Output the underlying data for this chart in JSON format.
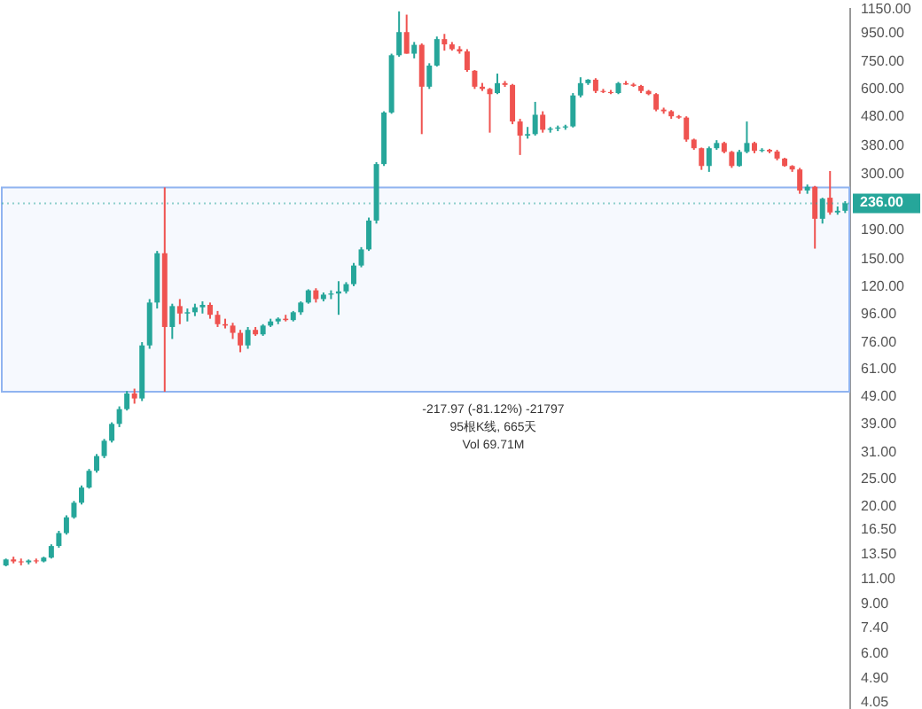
{
  "chart_data": {
    "type": "candlestick",
    "categories": [
      null,
      null,
      null,
      null,
      null,
      null,
      null,
      null,
      null,
      null,
      null,
      null,
      null,
      null,
      null,
      null,
      null,
      null,
      null,
      null,
      null,
      null,
      null,
      null,
      null,
      null,
      null,
      null,
      null,
      null,
      null,
      null,
      null,
      null,
      null,
      null,
      null,
      null,
      null,
      null,
      null,
      null,
      null,
      null,
      null,
      null,
      null,
      null,
      null,
      null,
      null,
      null,
      null,
      null,
      null,
      null,
      null,
      null,
      null,
      null,
      null,
      null,
      null,
      null,
      null,
      null,
      null,
      null,
      null,
      null,
      null,
      null,
      null,
      null,
      null,
      null,
      null,
      null,
      null,
      null,
      null,
      null,
      null,
      null,
      null,
      null,
      null,
      null,
      null,
      null,
      null,
      null,
      null,
      null,
      null,
      null,
      null,
      null,
      null,
      null,
      null,
      null,
      null,
      null,
      null,
      null,
      null,
      null,
      null,
      null,
      null,
      null
    ],
    "ohlc": [
      [
        12.3,
        13,
        12.2,
        12.9
      ],
      [
        12.9,
        13.2,
        12.5,
        12.7
      ],
      [
        12.7,
        13.0,
        12.3,
        12.6
      ],
      [
        12.6,
        12.9,
        12.4,
        12.8
      ],
      [
        12.8,
        13.0,
        12.5,
        12.7
      ],
      [
        12.7,
        13.2,
        12.6,
        13.1
      ],
      [
        13.1,
        14.6,
        13.0,
        14.4
      ],
      [
        14.4,
        16.3,
        14.2,
        16.0
      ],
      [
        16.0,
        18.5,
        15.8,
        18.2
      ],
      [
        18.2,
        20.8,
        18.0,
        20.5
      ],
      [
        20.5,
        23.6,
        20.2,
        23.2
      ],
      [
        23.2,
        27,
        23,
        26.6
      ],
      [
        26.6,
        30.5,
        26.2,
        30
      ],
      [
        30,
        34.5,
        29.5,
        34
      ],
      [
        34,
        39.5,
        33.5,
        39
      ],
      [
        39,
        45,
        38,
        44
      ],
      [
        44,
        51,
        43.5,
        50
      ],
      [
        50,
        52,
        46,
        48
      ],
      [
        48,
        76,
        47,
        74
      ],
      [
        74,
        108,
        72,
        105
      ],
      [
        105,
        160,
        100,
        157
      ],
      [
        157,
        268.7,
        50.7,
        86
      ],
      [
        86,
        104,
        78,
        102
      ],
      [
        102,
        108,
        88,
        96
      ],
      [
        96,
        100,
        90,
        97
      ],
      [
        97,
        104,
        94,
        101
      ],
      [
        101,
        106,
        96,
        103
      ],
      [
        103,
        105,
        92,
        95
      ],
      [
        95,
        98,
        86,
        88
      ],
      [
        88,
        92,
        85,
        87
      ],
      [
        87,
        89,
        78,
        82
      ],
      [
        82,
        84,
        70,
        74
      ],
      [
        74,
        86,
        72,
        84
      ],
      [
        84,
        86,
        80,
        81
      ],
      [
        81,
        88,
        80,
        87
      ],
      [
        87,
        92,
        86,
        90
      ],
      [
        90,
        93,
        88,
        92
      ],
      [
        92,
        95,
        90,
        91
      ],
      [
        91,
        98,
        90,
        97
      ],
      [
        97,
        106,
        95,
        105
      ],
      [
        105,
        117,
        104,
        116
      ],
      [
        116,
        118,
        105,
        108
      ],
      [
        108,
        114,
        106,
        112
      ],
      [
        112,
        116,
        108,
        113
      ],
      [
        113,
        125,
        95,
        115
      ],
      [
        115,
        124,
        113,
        122
      ],
      [
        122,
        145,
        120,
        142
      ],
      [
        142,
        165,
        140,
        162
      ],
      [
        162,
        210,
        160,
        205
      ],
      [
        205,
        330,
        200,
        325
      ],
      [
        325,
        500,
        320,
        495
      ],
      [
        495,
        800,
        490,
        790
      ],
      [
        790,
        1130,
        780,
        954
      ],
      [
        954,
        1100,
        800,
        800
      ],
      [
        800,
        880,
        770,
        860
      ],
      [
        860,
        870,
        415,
        611
      ],
      [
        611,
        740,
        600,
        726
      ],
      [
        726,
        920,
        720,
        901
      ],
      [
        901,
        940,
        820,
        863
      ],
      [
        863,
        880,
        820,
        830
      ],
      [
        830,
        850,
        800,
        815
      ],
      [
        815,
        830,
        690,
        700
      ],
      [
        696,
        700,
        600,
        611
      ],
      [
        611,
        630,
        590,
        600
      ],
      [
        600,
        605,
        420,
        575
      ],
      [
        580,
        680,
        575,
        629
      ],
      [
        629,
        640,
        610,
        620
      ],
      [
        620,
        625,
        450,
        460
      ],
      [
        460,
        470,
        350,
        410
      ],
      [
        410,
        440,
        400,
        415
      ],
      [
        415,
        540,
        410,
        486
      ],
      [
        486,
        500,
        420,
        430
      ],
      [
        430,
        440,
        420,
        434
      ],
      [
        434,
        445,
        425,
        438
      ],
      [
        438,
        448,
        430,
        442
      ],
      [
        442,
        580,
        438,
        569
      ],
      [
        569,
        660,
        560,
        629
      ],
      [
        629,
        650,
        620,
        647
      ],
      [
        647,
        655,
        580,
        590
      ],
      [
        590,
        600,
        580,
        585
      ],
      [
        585,
        595,
        575,
        580
      ],
      [
        580,
        635,
        575,
        629
      ],
      [
        629,
        640,
        620,
        622
      ],
      [
        622,
        630,
        610,
        615
      ],
      [
        615,
        620,
        580,
        590
      ],
      [
        590,
        595,
        570,
        575
      ],
      [
        575,
        580,
        500,
        507
      ],
      [
        507,
        515,
        490,
        500
      ],
      [
        500,
        505,
        470,
        480
      ],
      [
        480,
        485,
        470,
        475
      ],
      [
        475,
        480,
        390,
        397
      ],
      [
        397,
        400,
        365,
        370
      ],
      [
        370,
        372,
        310,
        320
      ],
      [
        320,
        375,
        305,
        370
      ],
      [
        370,
        395,
        365,
        386
      ],
      [
        386,
        390,
        355,
        359
      ],
      [
        359,
        362,
        315,
        320
      ],
      [
        320,
        365,
        318,
        359
      ],
      [
        359,
        460,
        355,
        386
      ],
      [
        386,
        390,
        355,
        362
      ],
      [
        362,
        370,
        358,
        365
      ],
      [
        365,
        368,
        355,
        360
      ],
      [
        360,
        365,
        335,
        340
      ],
      [
        340,
        342,
        318,
        320
      ],
      [
        320,
        322,
        305,
        311
      ],
      [
        311,
        315,
        255,
        262
      ],
      [
        262,
        275,
        255,
        270
      ],
      [
        270,
        272,
        163,
        208
      ],
      [
        208,
        247,
        200,
        245
      ],
      [
        247,
        307,
        215,
        219
      ],
      [
        219,
        230,
        215,
        222
      ],
      [
        222,
        240,
        218,
        236
      ]
    ],
    "log": true,
    "ylim": [
      3.7,
      1170
    ],
    "yticks": [
      {
        "value": 1150,
        "label": "1150.00"
      },
      {
        "value": 950,
        "label": "950.00"
      },
      {
        "value": 750,
        "label": "750.00"
      },
      {
        "value": 600,
        "label": "600.00"
      },
      {
        "value": 480,
        "label": "480.00"
      },
      {
        "value": 380,
        "label": "380.00"
      },
      {
        "value": 300,
        "label": "300.00"
      },
      {
        "value": 190,
        "label": "190.00"
      },
      {
        "value": 150,
        "label": "150.00"
      },
      {
        "value": 120,
        "label": "120.00"
      },
      {
        "value": 96,
        "label": "96.00"
      },
      {
        "value": 76,
        "label": "76.00"
      },
      {
        "value": 61,
        "label": "61.00"
      },
      {
        "value": 49,
        "label": "49.00"
      },
      {
        "value": 39,
        "label": "39.00"
      },
      {
        "value": 31,
        "label": "31.00"
      },
      {
        "value": 25,
        "label": "25.00"
      },
      {
        "value": 20,
        "label": "20.00"
      },
      {
        "value": 16.5,
        "label": "16.50"
      },
      {
        "value": 13.5,
        "label": "13.50"
      },
      {
        "value": 11,
        "label": "11.00"
      },
      {
        "value": 9,
        "label": "9.00"
      },
      {
        "value": 7.4,
        "label": "7.40"
      },
      {
        "value": 6,
        "label": "6.00"
      },
      {
        "value": 4.9,
        "label": "4.90"
      },
      {
        "value": 4.05,
        "label": "4.05"
      }
    ],
    "bands": [
      {
        "axis": "y",
        "from": 50.7,
        "to": 268.7,
        "color": "#90b4f0"
      }
    ],
    "ref_lines": [
      {
        "axis": "y",
        "value": 236,
        "label": "236.00",
        "color": "#26a69a"
      }
    ],
    "annotations": [
      "-217.97 (-81.12%) -21797",
      "95根K线, 665天",
      "Vol 69.71M"
    ]
  }
}
